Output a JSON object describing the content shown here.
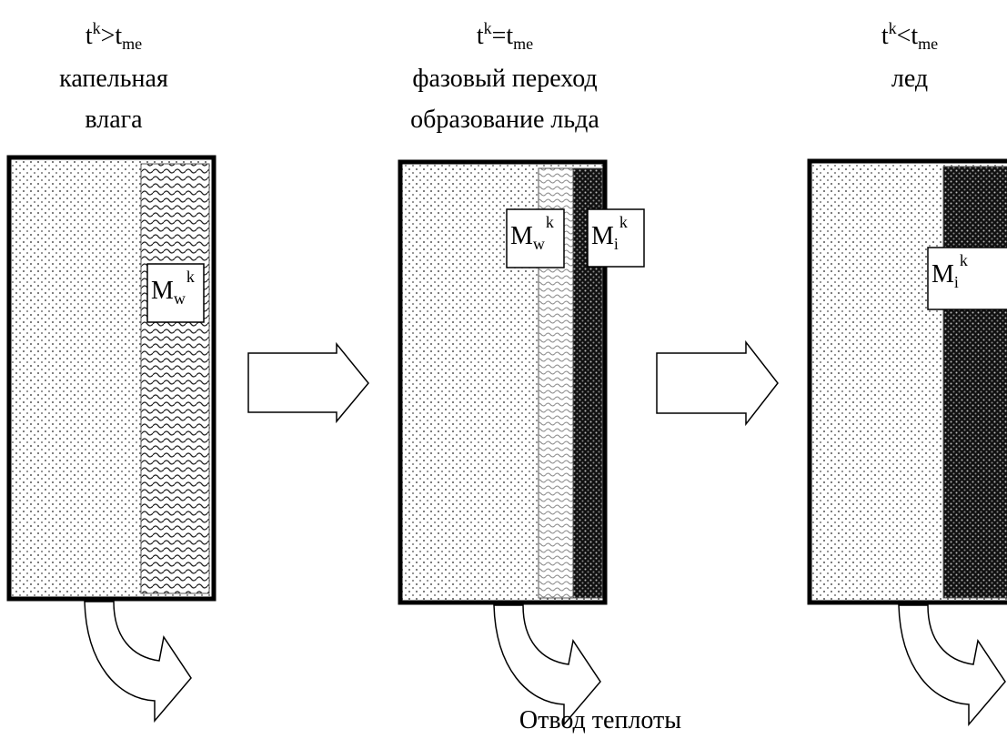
{
  "panels": [
    {
      "condition": {
        "var": "t",
        "sup": "k",
        "op": ">",
        "rhs": "t",
        "sub": "me"
      },
      "state": [
        "капельная",
        "влага"
      ],
      "labels": [
        {
          "base": "M",
          "sub": "w",
          "sup": "k"
        }
      ]
    },
    {
      "condition": {
        "var": "t",
        "sup": "k",
        "op": "=",
        "rhs": "t",
        "sub": "me"
      },
      "state": [
        "фазовый переход",
        "образование льда"
      ],
      "labels": [
        {
          "base": "M",
          "sub": "w",
          "sup": "k"
        },
        {
          "base": "M",
          "sub": "i",
          "sup": "k"
        }
      ]
    },
    {
      "condition": {
        "var": "t",
        "sup": "k",
        "op": "<",
        "rhs": "t",
        "sub": "me"
      },
      "state": [
        "лед"
      ],
      "labels": [
        {
          "base": "M",
          "sub": "i",
          "sup": "k"
        }
      ]
    }
  ],
  "footer": "Отвод теплоты"
}
